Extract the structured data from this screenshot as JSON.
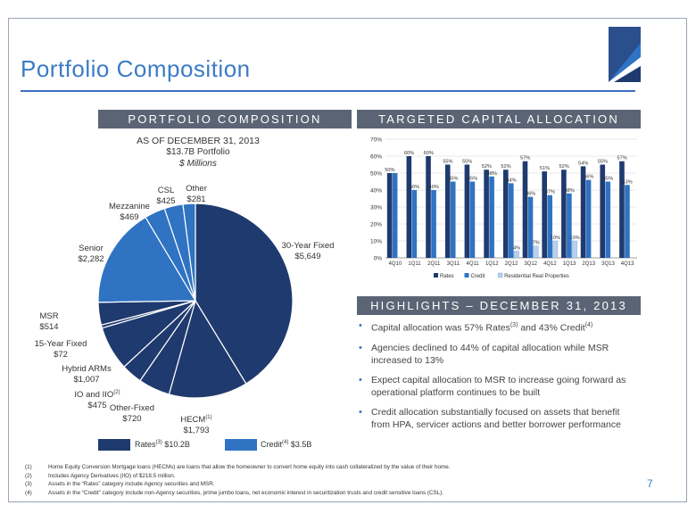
{
  "title": "Portfolio Composition",
  "page_number": "7",
  "left_panel": {
    "header": "PORTFOLIO COMPOSITION",
    "subtitle1": "AS OF DECEMBER 31, 2013",
    "subtitle2": "$13.7B Portfolio",
    "subtitle3": "$ Millions",
    "legend_rates_label": "Rates",
    "legend_rates_sup": "(3)",
    "legend_rates_value": "$10.2B",
    "legend_credit_label": "Credit",
    "legend_credit_sup": "(4)",
    "legend_credit_value": "$3.5B"
  },
  "right_panel": {
    "header": "TARGETED CAPITAL ALLOCATION",
    "highlights_header": "HIGHLIGHTS – DECEMBER 31, 2013"
  },
  "highlights": [
    {
      "parts": [
        {
          "t": "Capital allocation was 57% Rates"
        },
        {
          "sup": "(3)"
        },
        {
          "t": " and 43% Credit"
        },
        {
          "sup": "(4)"
        }
      ]
    },
    {
      "parts": [
        {
          "t": "Agencies declined to 44% of capital allocation while MSR increased to 13%"
        }
      ]
    },
    {
      "parts": [
        {
          "t": "Expect capital allocation to MSR to increase going forward as operational platform continues to be built"
        }
      ]
    },
    {
      "parts": [
        {
          "t": "Credit allocation substantially focused on assets that benefit from HPA, servicer actions and better borrower performance"
        }
      ]
    }
  ],
  "footnotes": [
    {
      "num": "(1)",
      "text": "Home Equity Conversion Mortgage loans (HECMs) are loans that allow the homeowner to convert home equity into cash collateralized by the value of their home."
    },
    {
      "num": "(2)",
      "text": "Includes Agency Derivatives (IIO) of $218.5  million."
    },
    {
      "num": "(3)",
      "text": "Assets in the “Rates” category include Agency securities and MSR."
    },
    {
      "num": "(4)",
      "text": "Assets in the “Credit” category include non-Agency securities, prime jumbo loans, net economic interest in securitization trusts and credit sensitive loans (CSL)."
    }
  ],
  "colors": {
    "rates": "#1f3a6e",
    "credit": "#2f73c2",
    "residential": "#b9d0ec",
    "accent": "#3c7bc6",
    "header_bar": "#5a6474"
  },
  "chart_data": [
    {
      "type": "pie",
      "unit": "$ Millions",
      "slices": [
        {
          "label": "30-Year Fixed",
          "value": 5649,
          "display": "$5,649",
          "group": "rates"
        },
        {
          "label": "HECM",
          "sup": "(1)",
          "value": 1793,
          "display": "$1,793",
          "group": "rates"
        },
        {
          "label": "Other-Fixed",
          "value": 720,
          "display": "$720",
          "group": "rates"
        },
        {
          "label": "IO and IIO",
          "sup": "(2)",
          "value": 475,
          "display": "$475",
          "group": "rates"
        },
        {
          "label": "Hybrid ARMs",
          "value": 1007,
          "display": "$1,007",
          "group": "rates"
        },
        {
          "label": "15-Year Fixed",
          "value": 72,
          "display": "$72",
          "group": "rates"
        },
        {
          "label": "MSR",
          "value": 514,
          "display": "$514",
          "group": "rates"
        },
        {
          "label": "Senior",
          "value": 2282,
          "display": "$2,282",
          "group": "credit"
        },
        {
          "label": "Mezzanine",
          "value": 469,
          "display": "$469",
          "group": "credit"
        },
        {
          "label": "CSL",
          "value": 425,
          "display": "$425",
          "group": "credit"
        },
        {
          "label": "Other",
          "value": 281,
          "display": "$281",
          "group": "credit"
        }
      ]
    },
    {
      "type": "bar",
      "categories": [
        "4Q10",
        "1Q11",
        "2Q11",
        "3Q11",
        "4Q11",
        "1Q12",
        "2Q12",
        "3Q12",
        "4Q12",
        "1Q13",
        "2Q13",
        "3Q13",
        "4Q13"
      ],
      "ylim": [
        0,
        70
      ],
      "yticks": [
        "0%",
        "10%",
        "20%",
        "30%",
        "40%",
        "50%",
        "60%",
        "70%"
      ],
      "series": [
        {
          "name": "Rates",
          "values": [
            50,
            60,
            60,
            55,
            55,
            52,
            52,
            57,
            51,
            52,
            54,
            55,
            57
          ],
          "labels": [
            "50%",
            "60%",
            "60%",
            "55%",
            "55%",
            "52%",
            "52%",
            "57%",
            "51%",
            "52%",
            "54%",
            "55%",
            "57%"
          ]
        },
        {
          "name": "Credit",
          "values": [
            50,
            40,
            40,
            45,
            45,
            48,
            44,
            36,
            37,
            38,
            46,
            45,
            43
          ],
          "labels": [
            "",
            "40%",
            "40%",
            "45%",
            "45%",
            "48%",
            "44%",
            "36%",
            "37%",
            "38%",
            "46%",
            "45%",
            "43%"
          ]
        },
        {
          "name": "Residential Real Properties",
          "values": [
            0,
            0,
            0,
            0,
            0,
            0,
            4,
            7,
            10,
            10,
            0,
            0,
            0
          ],
          "labels": [
            "",
            "",
            "",
            "",
            "",
            "",
            "4%",
            "7%",
            "10%",
            "10%",
            "",
            "",
            ""
          ]
        }
      ]
    }
  ]
}
